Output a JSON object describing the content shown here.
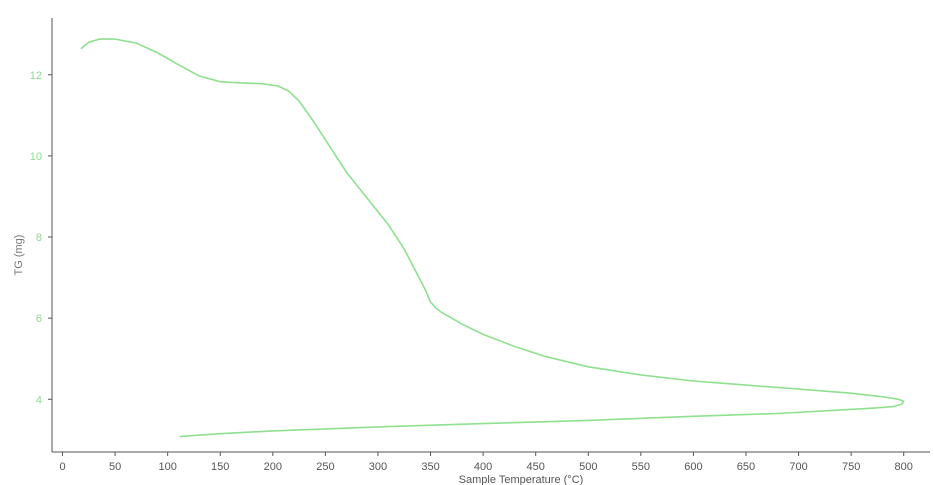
{
  "chart_data": {
    "type": "line",
    "title": "",
    "xlabel": "Sample Temperature (°C)",
    "ylabel": "TG (mg)",
    "xlim": [
      -10,
      825
    ],
    "ylim": [
      2.7,
      13.4
    ],
    "x_ticks": [
      0,
      50,
      100,
      150,
      200,
      250,
      300,
      350,
      400,
      450,
      500,
      550,
      600,
      650,
      700,
      750,
      800
    ],
    "y_ticks": [
      4,
      6,
      8,
      10,
      12
    ],
    "grid": false,
    "legend": "none",
    "colors": {
      "series": "#8fe08f",
      "axis": "#555555",
      "ytick": "#90d890"
    },
    "series": [
      {
        "x": [
          18,
          25,
          35,
          50,
          70,
          90,
          110,
          130,
          150,
          170,
          190,
          205,
          215,
          225,
          240,
          255,
          270,
          290,
          310,
          325,
          335,
          345,
          350,
          355,
          360,
          370,
          380,
          400,
          430,
          460,
          500,
          550,
          600,
          650,
          700,
          750,
          780,
          795,
          800,
          798,
          790,
          770,
          730,
          680,
          600,
          500,
          400,
          300,
          250,
          200,
          150,
          120,
          112
        ],
        "y": [
          12.65,
          12.8,
          12.88,
          12.88,
          12.78,
          12.55,
          12.25,
          11.97,
          11.83,
          11.8,
          11.78,
          11.72,
          11.6,
          11.35,
          10.8,
          10.2,
          9.6,
          8.95,
          8.3,
          7.7,
          7.2,
          6.7,
          6.4,
          6.25,
          6.15,
          6.0,
          5.85,
          5.6,
          5.3,
          5.05,
          4.8,
          4.6,
          4.45,
          4.35,
          4.25,
          4.15,
          4.06,
          4.0,
          3.95,
          3.88,
          3.82,
          3.78,
          3.72,
          3.65,
          3.58,
          3.48,
          3.4,
          3.32,
          3.27,
          3.22,
          3.15,
          3.1,
          3.08
        ]
      }
    ]
  }
}
